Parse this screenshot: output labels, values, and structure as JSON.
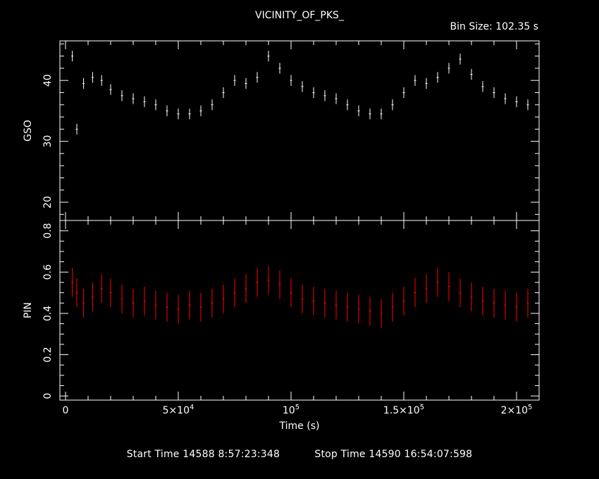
{
  "title": "VICINITY_OF_PKS_",
  "bin_size_label": "Bin Size:  102.35  s",
  "footer": {
    "start_label": "Start Time 14588  8:57:23:348",
    "stop_label": "Stop Time 14590 16:54:07:598"
  },
  "colors": {
    "background": "#000000",
    "axes": "#ffffff",
    "gso_series": "#ffffff",
    "pin_series": "#ff0000"
  },
  "chart_data": [
    {
      "type": "scatter",
      "name": "GSO panel",
      "ylabel": "GSO",
      "xlabel": "Time (s)",
      "xlim": [
        -2500,
        210000
      ],
      "ylim": [
        17,
        46.5
      ],
      "yticks": [
        20,
        30,
        40
      ],
      "ytick_labels": [
        "20",
        "30",
        "40"
      ],
      "series": [
        {
          "x": [
            3000,
            5000,
            8000,
            12000,
            16000,
            20000,
            25000,
            30000,
            35000,
            40000,
            45000,
            50000,
            55000,
            60000,
            65000,
            70000,
            75000,
            80000,
            85000,
            90000,
            95000,
            100000,
            105000,
            110000,
            115000,
            120000,
            125000,
            130000,
            135000,
            140000,
            145000,
            150000,
            155000,
            160000,
            165000,
            170000,
            175000,
            180000,
            185000,
            190000,
            195000,
            200000,
            205000
          ],
          "y": [
            44,
            32,
            39.5,
            40.5,
            40,
            38.5,
            37.5,
            37,
            36.5,
            36,
            35,
            34.5,
            34.5,
            35,
            36,
            38,
            40,
            39.5,
            40.5,
            44,
            42,
            40,
            39,
            38,
            37.5,
            37,
            36,
            35,
            34.5,
            34.5,
            36,
            38,
            40,
            39.5,
            40.5,
            42,
            43.5,
            41,
            39,
            38,
            37,
            36.5,
            36
          ]
        }
      ]
    },
    {
      "type": "scatter",
      "name": "PIN panel",
      "ylabel": "PIN",
      "xlabel": "Time (s)",
      "xlim": [
        -2500,
        210000
      ],
      "ylim": [
        -0.02,
        0.85
      ],
      "yticks": [
        0,
        0.2,
        0.4,
        0.6,
        0.8
      ],
      "ytick_labels": [
        "0",
        "0.2",
        "0.4",
        "0.6",
        "0.8"
      ],
      "xticks": [
        0,
        50000,
        100000,
        150000,
        200000
      ],
      "xtick_labels": [
        {
          "base": "0",
          "exp": ""
        },
        {
          "base": "5×10",
          "exp": "4"
        },
        {
          "base": "10",
          "exp": "5"
        },
        {
          "base": "1.5×10",
          "exp": "5"
        },
        {
          "base": "2×10",
          "exp": "5"
        }
      ],
      "series": [
        {
          "x": [
            3000,
            5000,
            8000,
            12000,
            16000,
            20000,
            25000,
            30000,
            35000,
            40000,
            45000,
            50000,
            55000,
            60000,
            65000,
            70000,
            75000,
            80000,
            85000,
            90000,
            95000,
            100000,
            105000,
            110000,
            115000,
            120000,
            125000,
            130000,
            135000,
            140000,
            145000,
            150000,
            155000,
            160000,
            165000,
            170000,
            175000,
            180000,
            185000,
            190000,
            195000,
            200000,
            205000
          ],
          "y": [
            0.55,
            0.5,
            0.45,
            0.48,
            0.52,
            0.5,
            0.47,
            0.45,
            0.46,
            0.44,
            0.43,
            0.42,
            0.44,
            0.43,
            0.45,
            0.47,
            0.5,
            0.52,
            0.55,
            0.56,
            0.54,
            0.5,
            0.47,
            0.46,
            0.45,
            0.44,
            0.43,
            0.42,
            0.41,
            0.4,
            0.43,
            0.46,
            0.5,
            0.52,
            0.55,
            0.53,
            0.5,
            0.48,
            0.46,
            0.45,
            0.44,
            0.43,
            0.45
          ]
        }
      ]
    }
  ]
}
